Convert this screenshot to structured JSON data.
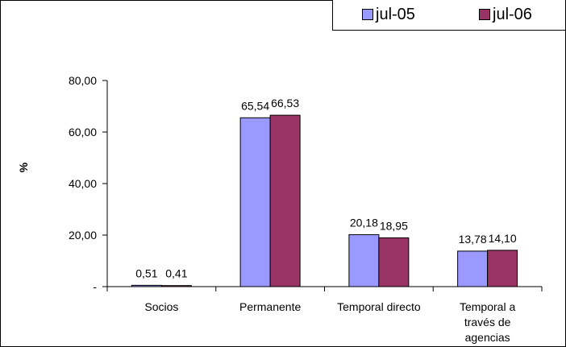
{
  "chart_data": {
    "type": "bar",
    "categories": [
      "Socios",
      "Permanente",
      "Temporal directo",
      "Temporal a\ntravés de\nagencias"
    ],
    "series": [
      {
        "name": "jul-05",
        "values": [
          0.51,
          65.54,
          20.18,
          13.78
        ],
        "color": "#9999ff",
        "labels": [
          "0,51",
          "65,54",
          "20,18",
          "13,78"
        ]
      },
      {
        "name": "jul-06",
        "values": [
          0.41,
          66.53,
          18.95,
          14.1
        ],
        "color": "#993366",
        "labels": [
          "0,41",
          "66,53",
          "18,95",
          "14,10"
        ]
      }
    ],
    "ylabel": "%",
    "ylim": [
      0,
      80
    ],
    "yticks": [
      0,
      20,
      40,
      60,
      80
    ],
    "ytick_labels": [
      "-",
      "20,00",
      "40,00",
      "60,00",
      "80,00"
    ],
    "legend_position": "top-right",
    "grid": false
  }
}
